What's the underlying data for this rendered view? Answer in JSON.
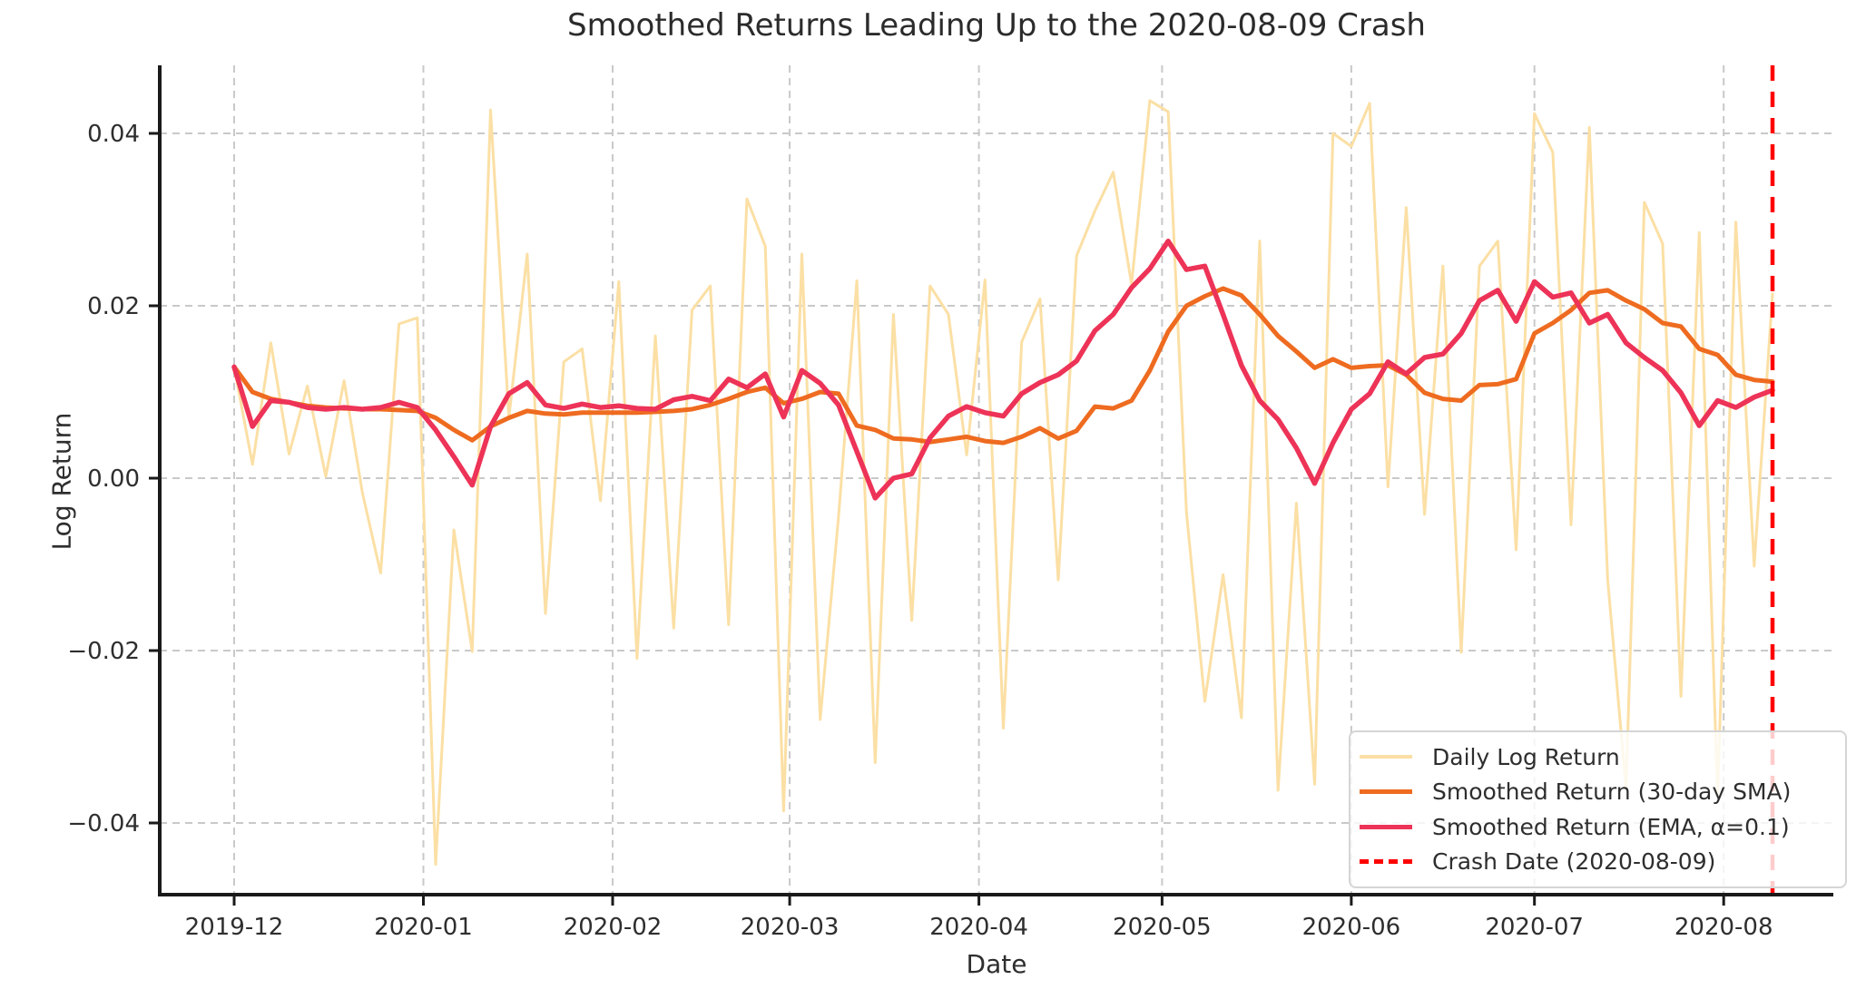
{
  "chart_data": {
    "type": "line",
    "title": "Smoothed Returns Leading Up to the 2020-08-09 Crash",
    "xlabel": "Date",
    "ylabel": "Log Return",
    "x_unit": "days since 2019-12-01",
    "sample_step_days": 3,
    "grid": true,
    "legend_position": "lower right",
    "ylim": [
      -0.0489,
      0.0479
    ],
    "x_ticks": [
      {
        "day": 0,
        "label": "2019-12"
      },
      {
        "day": 31,
        "label": "2020-01"
      },
      {
        "day": 62,
        "label": "2020-02"
      },
      {
        "day": 91,
        "label": "2020-03"
      },
      {
        "day": 122,
        "label": "2020-04"
      },
      {
        "day": 152,
        "label": "2020-05"
      },
      {
        "day": 183,
        "label": "2020-06"
      },
      {
        "day": 213,
        "label": "2020-07"
      },
      {
        "day": 244,
        "label": "2020-08"
      }
    ],
    "y_ticks": [
      {
        "value": 0.04,
        "label": "0.04"
      },
      {
        "value": 0.02,
        "label": "0.02"
      },
      {
        "value": 0.0,
        "label": "0.00"
      },
      {
        "value": -0.02,
        "label": "−0.02"
      },
      {
        "value": -0.04,
        "label": "−0.04"
      }
    ],
    "series": [
      {
        "name": "Daily Log Return",
        "color": "#FBDFA4",
        "width": 3,
        "style": "solid",
        "values": [
          0.0129,
          0.0016,
          0.0157,
          0.0028,
          0.0107,
          0.0002,
          0.0113,
          -0.0017,
          -0.011,
          0.0179,
          0.0186,
          -0.0448,
          -0.006,
          -0.0201,
          0.0427,
          0.007,
          0.026,
          -0.0157,
          0.0135,
          0.015,
          -0.0026,
          0.0228,
          -0.0209,
          0.0165,
          -0.0174,
          0.0195,
          0.0223,
          -0.017,
          0.0324,
          0.0269,
          -0.0386,
          0.026,
          -0.028,
          -0.0045,
          0.0229,
          -0.033,
          0.019,
          -0.0165,
          0.0223,
          0.019,
          0.0027,
          0.023,
          -0.029,
          0.0158,
          0.0208,
          -0.0118,
          0.0258,
          0.031,
          0.0355,
          0.0225,
          0.0438,
          0.0425,
          -0.004,
          -0.0259,
          -0.0112,
          -0.0278,
          0.0275,
          -0.0362,
          -0.0029,
          -0.0355,
          0.04,
          0.0385,
          0.0435,
          -0.001,
          0.0314,
          -0.0042,
          0.0246,
          -0.0202,
          0.0246,
          0.0275,
          -0.0083,
          0.0423,
          0.0378,
          -0.0054,
          0.0407,
          -0.0118,
          -0.036,
          0.032,
          0.0272,
          -0.0253,
          0.0285,
          -0.0368,
          0.0297,
          -0.0102,
          0.0214
        ]
      },
      {
        "name": "Smoothed Return (30-day SMA)",
        "color": "#EE6B20",
        "width": 5,
        "style": "solid",
        "values": [
          0.0129,
          0.01,
          0.0092,
          0.0088,
          0.0084,
          0.0082,
          0.0081,
          0.008,
          0.008,
          0.0079,
          0.0078,
          0.007,
          0.0056,
          0.0044,
          0.006,
          0.007,
          0.0078,
          0.0075,
          0.0074,
          0.0076,
          0.0076,
          0.0076,
          0.0076,
          0.0077,
          0.0078,
          0.008,
          0.0085,
          0.0092,
          0.01,
          0.0105,
          0.0087,
          0.0092,
          0.01,
          0.0098,
          0.0061,
          0.0056,
          0.0046,
          0.0045,
          0.0042,
          0.0045,
          0.0048,
          0.0043,
          0.0041,
          0.0048,
          0.0058,
          0.0046,
          0.0055,
          0.0083,
          0.0081,
          0.009,
          0.0125,
          0.017,
          0.02,
          0.0211,
          0.022,
          0.0212,
          0.019,
          0.0165,
          0.0147,
          0.0128,
          0.0138,
          0.0128,
          0.013,
          0.0131,
          0.012,
          0.0099,
          0.0092,
          0.009,
          0.0108,
          0.0109,
          0.0115,
          0.0168,
          0.018,
          0.0195,
          0.0215,
          0.0218,
          0.0206,
          0.0196,
          0.018,
          0.0176,
          0.015,
          0.0143,
          0.012,
          0.0114,
          0.0112
        ]
      },
      {
        "name": "Smoothed Return (EMA, α=0.1)",
        "color": "#ED3357",
        "width": 5.5,
        "style": "solid",
        "values": [
          0.0129,
          0.006,
          0.009,
          0.0088,
          0.0082,
          0.008,
          0.0082,
          0.008,
          0.0082,
          0.0088,
          0.0082,
          0.0056,
          0.0025,
          -0.0008,
          0.006,
          0.0098,
          0.0111,
          0.0085,
          0.0081,
          0.0086,
          0.0082,
          0.0084,
          0.0081,
          0.008,
          0.0091,
          0.0095,
          0.009,
          0.0115,
          0.0105,
          0.0121,
          0.0071,
          0.0125,
          0.011,
          0.0085,
          0.0031,
          -0.0023,
          0.0,
          0.0005,
          0.0047,
          0.0072,
          0.0083,
          0.0076,
          0.0072,
          0.0098,
          0.0111,
          0.012,
          0.0136,
          0.0171,
          0.019,
          0.0221,
          0.0243,
          0.0275,
          0.0242,
          0.0246,
          0.019,
          0.0131,
          0.009,
          0.0068,
          0.0035,
          -0.0006,
          0.0041,
          0.008,
          0.0098,
          0.0135,
          0.0121,
          0.014,
          0.0144,
          0.0168,
          0.0206,
          0.0218,
          0.0182,
          0.0228,
          0.021,
          0.0215,
          0.018,
          0.019,
          0.0157,
          0.014,
          0.0125,
          0.0099,
          0.0061,
          0.009,
          0.0082,
          0.0094,
          0.0102
        ]
      }
    ],
    "crash_line": {
      "label": "Crash Date (2020-08-09)",
      "day": 252,
      "color": "#FF0000",
      "style": "dashed"
    }
  },
  "legend": {
    "items": [
      {
        "label": "Daily Log Return"
      },
      {
        "label": "Smoothed Return (30-day SMA)"
      },
      {
        "label": "Smoothed Return (EMA, α=0.1)"
      },
      {
        "label": "Crash Date (2020-08-09)"
      }
    ]
  },
  "colors": {
    "daily": "#FBDFA4",
    "sma": "#EE6B20",
    "ema": "#ED3357",
    "crash": "#FF0000",
    "grid": "#C9C9C9",
    "text": "#2E2E2E",
    "spine": "#1A1A1A"
  }
}
